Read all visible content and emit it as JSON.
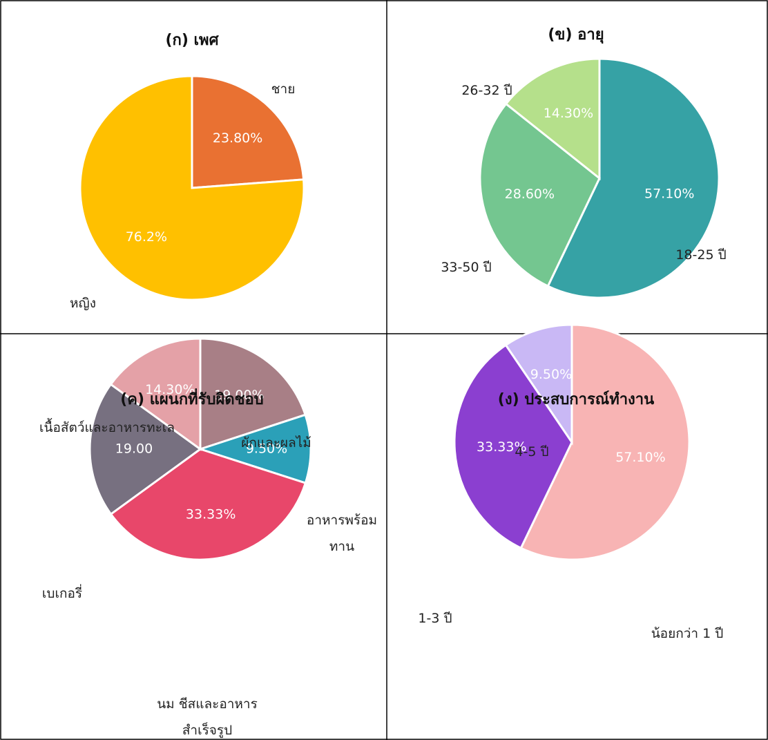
{
  "chart_data": [
    {
      "type": "pie",
      "title": "(ก) เพศ",
      "categories": [
        "ชาย",
        "หญิง"
      ],
      "values": [
        23.8,
        76.2
      ],
      "value_labels": [
        "23.80%",
        "76.2%"
      ],
      "colors": [
        "#e97132",
        "#ffc000"
      ]
    },
    {
      "type": "pie",
      "title": "(ข) อายุ",
      "categories": [
        "18-25 ปี",
        "33-50 ปี",
        "26-32 ปี"
      ],
      "values": [
        57.1,
        28.6,
        14.3
      ],
      "value_labels": [
        "57.10%",
        "28.60%",
        "14.30%"
      ],
      "colors": [
        "#36a2a5",
        "#74c690",
        "#b5e08b"
      ]
    },
    {
      "type": "pie",
      "title": "(ค) แผนกที่รับผิดชอบ",
      "categories": [
        "ผักและผลไม้",
        "อาหารพร้อมทาน",
        "นม ชีสและอาหารสำเร็จรูป",
        "เบเกอรี่",
        "เนื้อสัตว์และอาหารทะเล"
      ],
      "values": [
        19.0,
        9.5,
        33.33,
        19.0,
        14.3
      ],
      "value_labels": [
        "19.00%",
        "9.50%",
        "33.33%",
        "19.00",
        "14.30%"
      ],
      "colors": [
        "#a87f86",
        "#2ba0b8",
        "#e8476a",
        "#777080",
        "#e4a1a7"
      ]
    },
    {
      "type": "pie",
      "title": "(ง) ประสบการณ์ทำงาน",
      "categories": [
        "น้อยกว่า 1 ปี",
        "1-3 ปี",
        "4-5 ปี"
      ],
      "values": [
        57.1,
        33.33,
        9.5
      ],
      "value_labels": [
        "57.10%",
        "33.33%",
        "9.50%"
      ],
      "colors": [
        "#f8b4b4",
        "#8b3fd0",
        "#c9b8f5"
      ]
    }
  ]
}
